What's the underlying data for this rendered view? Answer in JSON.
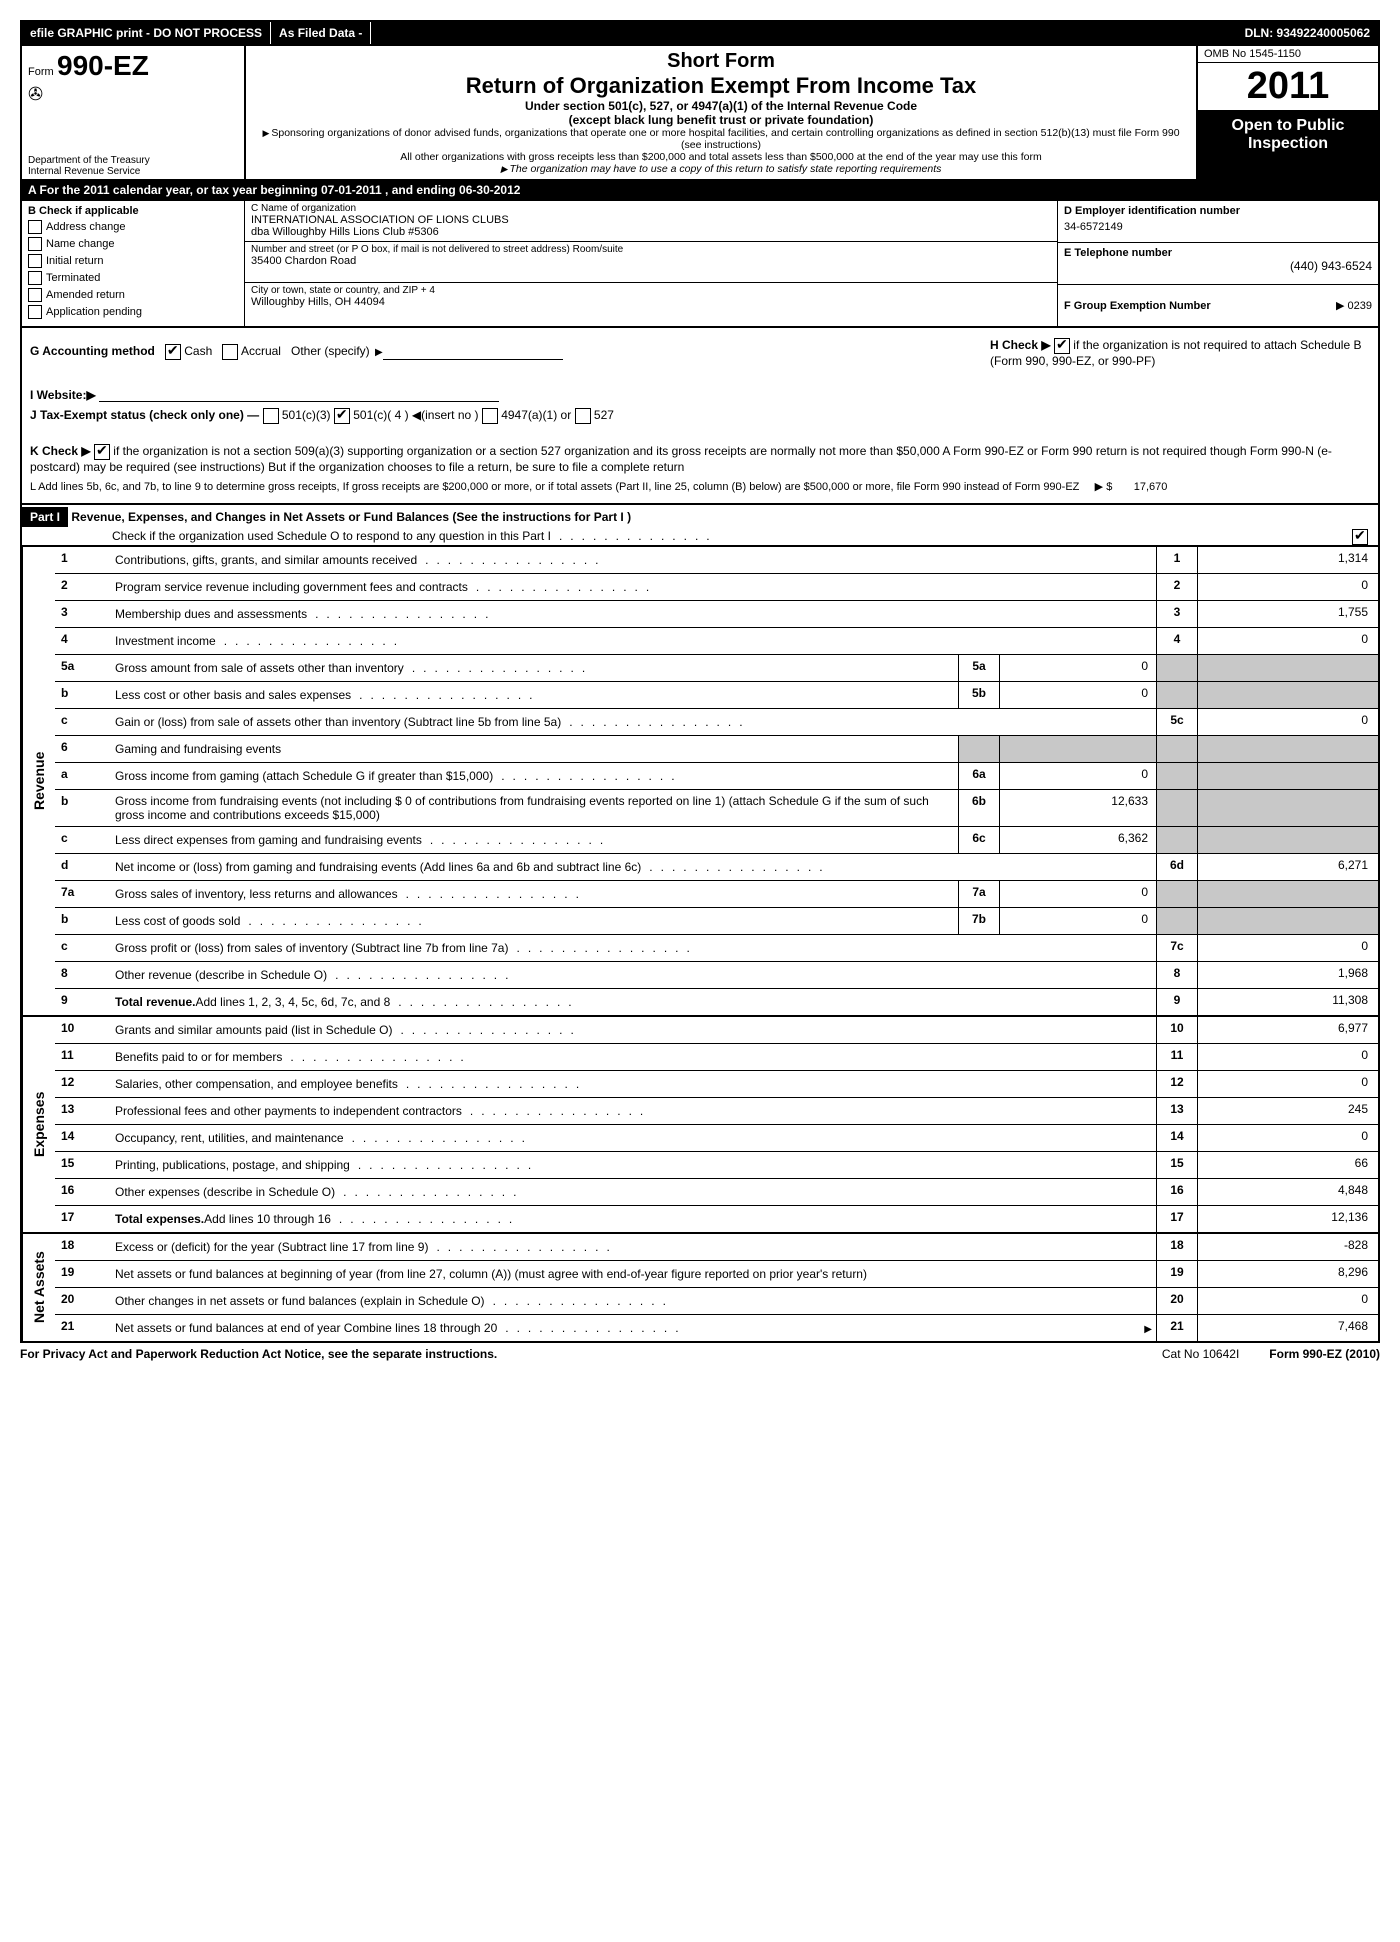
{
  "topbar": {
    "efile": "efile GRAPHIC print - DO NOT PROCESS",
    "asfiled": "As Filed Data -",
    "dln": "DLN: 93492240005062"
  },
  "header": {
    "form_prefix": "Form",
    "form_number": "990-EZ",
    "dept": "Department of the Treasury",
    "irs": "Internal Revenue Service",
    "short_form": "Short Form",
    "title": "Return of Organization Exempt From Income Tax",
    "under": "Under section 501(c), 527, or 4947(a)(1) of the Internal Revenue Code",
    "except": "(except black lung benefit trust or private foundation)",
    "note1": "Sponsoring organizations of donor advised funds, organizations that operate one or more hospital facilities, and certain controlling organizations as defined in section 512(b)(13) must file Form 990 (see instructions)",
    "note2": "All other organizations with gross receipts less than $200,000 and total assets less than $500,000 at the end of the year may use this form",
    "note3": "The organization may have to use a copy of this return to satisfy state reporting requirements",
    "omb": "OMB No 1545-1150",
    "year": "2011",
    "open": "Open to Public Inspection"
  },
  "rowA": "A  For the 2011 calendar year, or tax year beginning 07-01-2011             , and ending 06-30-2012",
  "colB": {
    "title": "B  Check if applicable",
    "items": [
      "Address change",
      "Name change",
      "Initial return",
      "Terminated",
      "Amended return",
      "Application pending"
    ]
  },
  "colC": {
    "name_lbl": "C Name of organization",
    "name1": "INTERNATIONAL ASSOCIATION OF LIONS CLUBS",
    "name2": "dba Willoughby Hills Lions Club #5306",
    "street_lbl": "Number and street (or P O box, if mail is not delivered to street address) Room/suite",
    "street": "35400 Chardon Road",
    "city_lbl": "City or town, state or country, and ZIP + 4",
    "city": "Willoughby Hills, OH  44094"
  },
  "colDEF": {
    "d_lbl": "D Employer identification number",
    "d_val": "34-6572149",
    "e_lbl": "E Telephone number",
    "e_val": "(440) 943-6524",
    "f_lbl": "F Group Exemption Number",
    "f_val": "▶ 0239"
  },
  "mid": {
    "g": "G Accounting method",
    "g_cash": "Cash",
    "g_accrual": "Accrual",
    "g_other": "Other (specify)",
    "h": "H   Check ▶",
    "h_text": "if the organization is not required to attach Schedule B (Form 990, 990-EZ, or 990-PF)",
    "i": "I Website:▶",
    "j": "J Tax-Exempt status (check only one) —",
    "j1": "501(c)(3)",
    "j2": "501(c)( 4 ) ◀(insert no )",
    "j3": "4947(a)(1) or",
    "j4": "527",
    "k": "K Check ▶",
    "k_text": "if the organization is not a section 509(a)(3) supporting organization or a section 527 organization and its gross receipts are normally not more than   $50,000  A Form 990-EZ or Form 990 return is not required though Form 990-N (e-postcard) may be required (see instructions)  But if the   organization chooses to file a return, be sure to file a complete return",
    "l": "L Add lines 5b, 6c, and 7b, to line 9 to determine gross receipts, If gross receipts are $200,000 or more, or if total assets (Part II, line 25, column (B) below) are $500,000 or more,   file Form 990 instead of Form 990-EZ",
    "l_amt_lbl": "▶ $",
    "l_amt": "17,670"
  },
  "part1": {
    "label": "Part I",
    "title": "Revenue, Expenses, and Changes in Net Assets or Fund Balances (See the instructions for Part I )",
    "sub": "Check if the organization used Schedule O to respond to any question in this Part I"
  },
  "revenue_label": "Revenue",
  "expenses_label": "Expenses",
  "netassets_label": "Net Assets",
  "lines": {
    "1": {
      "desc": "Contributions, gifts, grants, and similar amounts received",
      "out": "1",
      "val": "1,314"
    },
    "2": {
      "desc": "Program service revenue including government fees and contracts",
      "out": "2",
      "val": "0"
    },
    "3": {
      "desc": "Membership dues and assessments",
      "out": "3",
      "val": "1,755"
    },
    "4": {
      "desc": "Investment income",
      "out": "4",
      "val": "0"
    },
    "5a": {
      "desc": "Gross amount from sale of assets other than inventory",
      "in": "5a",
      "ival": "0"
    },
    "5b": {
      "desc": "Less  cost or other basis and sales expenses",
      "in": "5b",
      "ival": "0"
    },
    "5c": {
      "desc": "Gain or (loss) from sale of assets other than inventory (Subtract line 5b from line 5a)",
      "out": "5c",
      "val": "0"
    },
    "6": {
      "desc": "Gaming and fundraising events"
    },
    "6a": {
      "desc": "Gross income from gaming (attach Schedule G if greater than $15,000)",
      "in": "6a",
      "ival": "0"
    },
    "6b": {
      "desc": "Gross income from fundraising events (not including $ 0 of contributions from fundraising events reported on line 1) (attach Schedule G if the sum of such gross income and contributions exceeds $15,000)",
      "in": "6b",
      "ival": "12,633"
    },
    "6c": {
      "desc": "Less  direct expenses from gaming and fundraising events",
      "in": "6c",
      "ival": "6,362"
    },
    "6d": {
      "desc": "Net income or (loss) from gaming and fundraising events (Add lines 6a and 6b and subtract line 6c)",
      "out": "6d",
      "val": "6,271"
    },
    "7a": {
      "desc": "Gross sales of inventory, less returns and allowances",
      "in": "7a",
      "ival": "0"
    },
    "7b": {
      "desc": "Less  cost of goods sold",
      "in": "7b",
      "ival": "0"
    },
    "7c": {
      "desc": "Gross profit or (loss) from sales of inventory (Subtract line 7b from line 7a)",
      "out": "7c",
      "val": "0"
    },
    "8": {
      "desc": "Other revenue (describe in Schedule O)",
      "out": "8",
      "val": "1,968"
    },
    "9": {
      "desc": "Total revenue. Add lines 1, 2, 3, 4, 5c, 6d, 7c, and 8",
      "out": "9",
      "val": "11,308",
      "bold": true
    },
    "10": {
      "desc": "Grants and similar amounts paid (list in Schedule O)",
      "out": "10",
      "val": "6,977"
    },
    "11": {
      "desc": "Benefits paid to or for members",
      "out": "11",
      "val": "0"
    },
    "12": {
      "desc": "Salaries, other compensation, and employee benefits",
      "out": "12",
      "val": "0"
    },
    "13": {
      "desc": "Professional fees and other payments to independent contractors",
      "out": "13",
      "val": "245"
    },
    "14": {
      "desc": "Occupancy, rent, utilities, and maintenance",
      "out": "14",
      "val": "0"
    },
    "15": {
      "desc": "Printing, publications, postage, and shipping",
      "out": "15",
      "val": "66"
    },
    "16": {
      "desc": "Other expenses (describe in Schedule O)",
      "out": "16",
      "val": "4,848"
    },
    "17": {
      "desc": "Total expenses. Add lines 10 through 16",
      "out": "17",
      "val": "12,136",
      "bold": true
    },
    "18": {
      "desc": "Excess or (deficit) for the year (Subtract line 17 from line 9)",
      "out": "18",
      "val": "-828"
    },
    "19": {
      "desc": "Net assets or fund balances at beginning of year (from line 27, column (A)) (must agree with end-of-year figure reported on prior year's return)",
      "out": "19",
      "val": "8,296"
    },
    "20": {
      "desc": "Other changes in net assets or fund balances (explain in Schedule O)",
      "out": "20",
      "val": "0"
    },
    "21": {
      "desc": "Net assets or fund balances at end of year  Combine lines 18 through 20",
      "out": "21",
      "val": "7,468",
      "arrow": true
    }
  },
  "footer": {
    "left": "For Privacy Act and Paperwork Reduction Act Notice, see the separate instructions.",
    "mid": "Cat No 10642I",
    "right": "Form 990-EZ (2010)"
  },
  "colors": {
    "bg": "#ffffff",
    "black": "#000000",
    "grey": "#c8c8c8"
  }
}
